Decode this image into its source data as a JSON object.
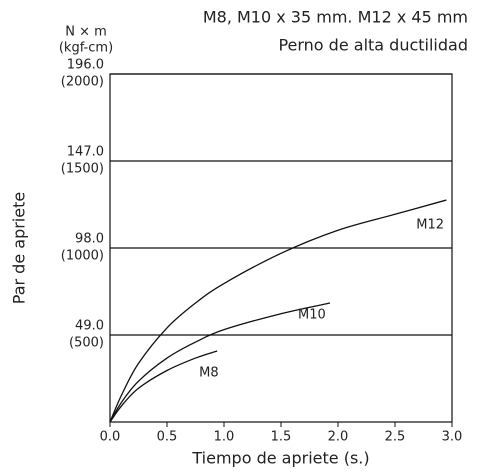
{
  "chart_data": {
    "type": "line",
    "title": "M8, M10 x 35 mm. M12 x 45 mm",
    "subtitle": "Perno de alta ductilidad",
    "y_unit": "N × m",
    "y2_unit": "(kgf-cm)",
    "y_label": "Par de apriete",
    "x_label": "Tiempo de apriete (s.)",
    "xlim": [
      0,
      3
    ],
    "xticks": [
      {
        "value": 0,
        "label": "0.0"
      },
      0.5,
      {
        "value": 1,
        "label": "1.0"
      },
      1.5,
      {
        "value": 2,
        "label": "2.0"
      },
      2.5,
      {
        "value": 3,
        "label": "3.0"
      }
    ],
    "ylim": [
      0,
      196
    ],
    "yticks": [
      {
        "value": 49,
        "label": "49.0"
      },
      {
        "value": 98,
        "label": "98.0"
      },
      {
        "value": 147,
        "label": "147.0"
      },
      {
        "value": 196,
        "label": "196.0"
      }
    ],
    "y2lim": [
      0,
      2000
    ],
    "y2ticks": [
      {
        "value": 500,
        "label": "(500)"
      },
      {
        "value": 1000,
        "label": "(1000)"
      },
      {
        "value": 1500,
        "label": "(1500)"
      },
      {
        "value": 2000,
        "label": "(2000)"
      }
    ],
    "grid": true,
    "series": [
      {
        "name": "M12",
        "color": "#111111",
        "x": [
          0,
          0.1,
          0.25,
          0.5,
          0.75,
          1.0,
          1.5,
          2.0,
          2.5,
          2.95
        ],
        "values": [
          0,
          15,
          33,
          53,
          67,
          78,
          95,
          108,
          117,
          125
        ]
      },
      {
        "name": "M10",
        "color": "#111111",
        "x": [
          0,
          0.1,
          0.25,
          0.5,
          0.75,
          1.0,
          1.5,
          1.93
        ],
        "values": [
          0,
          11,
          23,
          36,
          45,
          52,
          61,
          67
        ]
      },
      {
        "name": "M8",
        "color": "#111111",
        "x": [
          0,
          0.1,
          0.25,
          0.5,
          0.75,
          0.94
        ],
        "values": [
          0,
          9,
          19,
          29,
          36,
          40
        ]
      }
    ]
  }
}
